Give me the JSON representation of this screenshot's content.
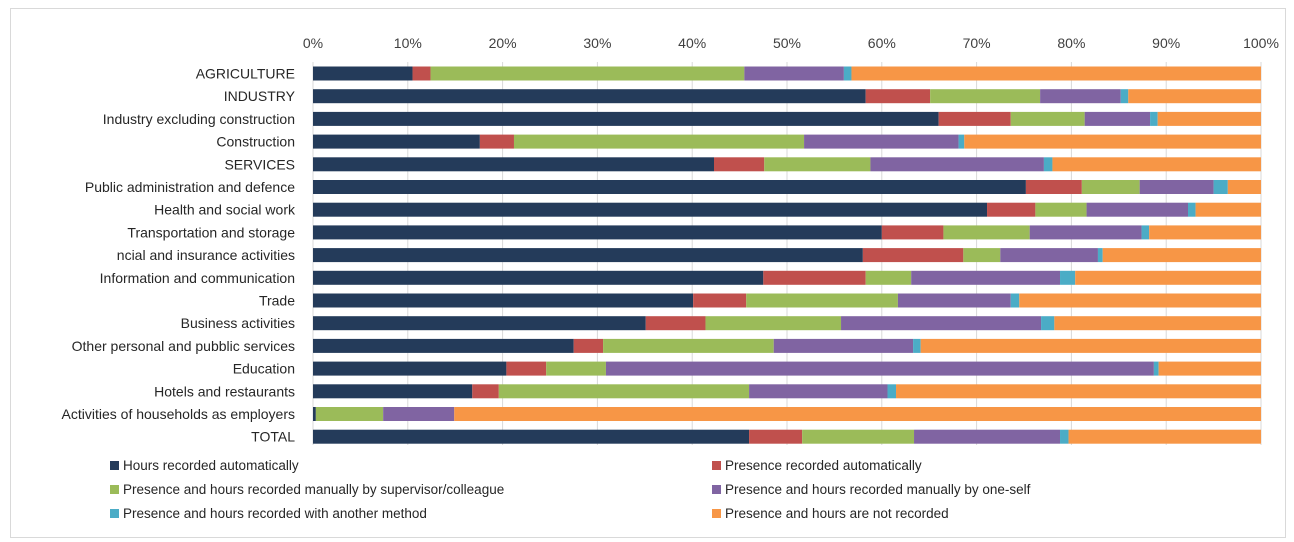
{
  "chart_data": {
    "type": "bar",
    "stacked": true,
    "orientation": "horizontal",
    "percent_axis": true,
    "x_ticks": [
      "0%",
      "10%",
      "20%",
      "30%",
      "40%",
      "50%",
      "60%",
      "70%",
      "80%",
      "90%",
      "100%"
    ],
    "xlim": [
      0,
      100
    ],
    "grid": true,
    "legend_position": "bottom",
    "categories": [
      "AGRICULTURE",
      "INDUSTRY",
      "Industry excluding construction",
      "Construction",
      "SERVICES",
      "Public administration and defence",
      "Health and social work",
      "Transportation and storage",
      "ncial and insurance activities",
      "Information and communication",
      "Trade",
      "Business activities",
      "Other personal and pubblic services",
      "Education",
      "Hotels and restaurants",
      "Activities of households as employers",
      "TOTAL"
    ],
    "series": [
      {
        "name": "Hours recorded automatically",
        "color": "#243b5a",
        "values": [
          10.5,
          58.3,
          66.0,
          17.6,
          42.3,
          75.2,
          71.1,
          60.0,
          58.0,
          47.5,
          40.1,
          35.1,
          27.5,
          20.4,
          16.8,
          0.3,
          46.0
        ]
      },
      {
        "name": "Presence recorded automatically",
        "color": "#c0504d",
        "values": [
          1.9,
          6.8,
          7.6,
          3.6,
          5.3,
          5.9,
          5.1,
          6.5,
          10.6,
          10.8,
          5.6,
          6.3,
          3.1,
          4.2,
          2.8,
          0.0,
          5.6
        ]
      },
      {
        "name": "Presence and hours recorded manually by supervisor/colleague",
        "color": "#9bbb59",
        "values": [
          33.1,
          11.6,
          7.8,
          30.6,
          11.2,
          6.1,
          5.4,
          9.1,
          3.9,
          4.8,
          16.0,
          14.3,
          18.0,
          6.3,
          26.4,
          7.1,
          11.8
        ]
      },
      {
        "name": "Presence and hours recorded manually by one-self",
        "color": "#8064a2",
        "values": [
          10.5,
          8.5,
          6.9,
          16.3,
          18.3,
          7.8,
          10.7,
          11.8,
          10.3,
          15.7,
          11.9,
          21.1,
          14.7,
          57.8,
          14.6,
          7.5,
          15.4
        ]
      },
      {
        "name": "Presence and hours recorded with another method",
        "color": "#4bacc6",
        "values": [
          0.8,
          0.8,
          0.8,
          0.6,
          0.9,
          1.5,
          0.8,
          0.8,
          0.5,
          1.6,
          0.9,
          1.4,
          0.8,
          0.5,
          0.9,
          0.0,
          0.9
        ]
      },
      {
        "name": "Presence and hours are not recorded",
        "color": "#f79646",
        "values": [
          43.2,
          14.0,
          10.9,
          31.3,
          22.0,
          3.5,
          6.9,
          11.8,
          16.7,
          19.6,
          25.5,
          21.8,
          35.9,
          10.8,
          38.5,
          85.1,
          20.3
        ]
      }
    ]
  }
}
